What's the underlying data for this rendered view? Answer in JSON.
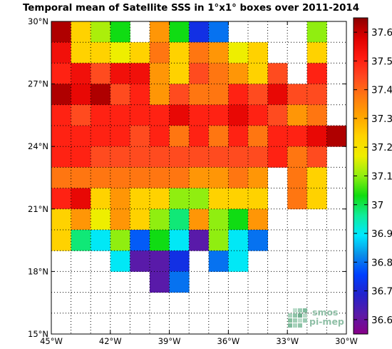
{
  "chart_data": {
    "type": "heatmap",
    "title": "Temporal mean of Satellite SSS in 1°x1° boxes over 2011-2014",
    "x_ticks": [
      "45°W",
      "42°W",
      "39°W",
      "36°W",
      "33°W",
      "30°W"
    ],
    "y_ticks": [
      "15°N",
      "18°N",
      "21°N",
      "24°N",
      "27°N",
      "30°N"
    ],
    "x_range": [
      -45,
      -30
    ],
    "y_range": [
      15,
      30
    ],
    "grid": true,
    "colorbar": {
      "ticks": [
        "36.6",
        "36.7",
        "36.8",
        "36.9",
        "37",
        "37.1",
        "37.2",
        "37.3",
        "37.4",
        "37.5",
        "37.6"
      ],
      "range": [
        36.55,
        37.65
      ],
      "colors": [
        "#880088",
        "#5a1aa8",
        "#2222cc",
        "#0040ff",
        "#0a8ee8",
        "#00e8ff",
        "#10ec9a",
        "#10dc10",
        "#90ee10",
        "#eeee00",
        "#ffd400",
        "#ffa500",
        "#ff7a10",
        "#ff4820",
        "#ff1a10",
        "#dd0000",
        "#8b0000"
      ]
    },
    "logo": "smos pi-mep",
    "cells": [
      {
        "x": -45,
        "y": 29,
        "v": 37.62
      },
      {
        "x": -44,
        "y": 29,
        "v": 37.24
      },
      {
        "x": -43,
        "y": 29,
        "v": 37.12
      },
      {
        "x": -42,
        "y": 29,
        "v": 37.03
      },
      {
        "x": -40,
        "y": 29,
        "v": 37.33
      },
      {
        "x": -39,
        "y": 29,
        "v": 37.03
      },
      {
        "x": -38,
        "y": 29,
        "v": 36.72
      },
      {
        "x": -37,
        "y": 29,
        "v": 36.8
      },
      {
        "x": -32,
        "y": 29,
        "v": 37.1
      },
      {
        "x": -45,
        "y": 28,
        "v": 37.54
      },
      {
        "x": -44,
        "y": 28,
        "v": 37.24
      },
      {
        "x": -43,
        "y": 28,
        "v": 37.24
      },
      {
        "x": -42,
        "y": 28,
        "v": 37.17
      },
      {
        "x": -41,
        "y": 28,
        "v": 37.24
      },
      {
        "x": -40,
        "y": 28,
        "v": 37.38
      },
      {
        "x": -39,
        "y": 28,
        "v": 37.24
      },
      {
        "x": -38,
        "y": 28,
        "v": 37.38
      },
      {
        "x": -37,
        "y": 28,
        "v": 37.33
      },
      {
        "x": -36,
        "y": 28,
        "v": 37.17
      },
      {
        "x": -35,
        "y": 28,
        "v": 37.24
      },
      {
        "x": -32,
        "y": 28,
        "v": 37.24
      },
      {
        "x": -45,
        "y": 27,
        "v": 37.5
      },
      {
        "x": -44,
        "y": 27,
        "v": 37.54
      },
      {
        "x": -43,
        "y": 27,
        "v": 37.44
      },
      {
        "x": -42,
        "y": 27,
        "v": 37.54
      },
      {
        "x": -41,
        "y": 27,
        "v": 37.54
      },
      {
        "x": -40,
        "y": 27,
        "v": 37.33
      },
      {
        "x": -39,
        "y": 27,
        "v": 37.24
      },
      {
        "x": -38,
        "y": 27,
        "v": 37.44
      },
      {
        "x": -37,
        "y": 27,
        "v": 37.38
      },
      {
        "x": -36,
        "y": 27,
        "v": 37.33
      },
      {
        "x": -35,
        "y": 27,
        "v": 37.24
      },
      {
        "x": -34,
        "y": 27,
        "v": 37.44
      },
      {
        "x": -32,
        "y": 27,
        "v": 37.5
      },
      {
        "x": -45,
        "y": 26,
        "v": 37.62
      },
      {
        "x": -44,
        "y": 26,
        "v": 37.56
      },
      {
        "x": -43,
        "y": 26,
        "v": 37.62
      },
      {
        "x": -42,
        "y": 26,
        "v": 37.44
      },
      {
        "x": -41,
        "y": 26,
        "v": 37.5
      },
      {
        "x": -40,
        "y": 26,
        "v": 37.33
      },
      {
        "x": -39,
        "y": 26,
        "v": 37.44
      },
      {
        "x": -38,
        "y": 26,
        "v": 37.38
      },
      {
        "x": -37,
        "y": 26,
        "v": 37.38
      },
      {
        "x": -36,
        "y": 26,
        "v": 37.5
      },
      {
        "x": -35,
        "y": 26,
        "v": 37.44
      },
      {
        "x": -34,
        "y": 26,
        "v": 37.56
      },
      {
        "x": -33,
        "y": 26,
        "v": 37.44
      },
      {
        "x": -32,
        "y": 26,
        "v": 37.44
      },
      {
        "x": -45,
        "y": 25,
        "v": 37.5
      },
      {
        "x": -44,
        "y": 25,
        "v": 37.44
      },
      {
        "x": -43,
        "y": 25,
        "v": 37.5
      },
      {
        "x": -42,
        "y": 25,
        "v": 37.5
      },
      {
        "x": -41,
        "y": 25,
        "v": 37.5
      },
      {
        "x": -40,
        "y": 25,
        "v": 37.5
      },
      {
        "x": -39,
        "y": 25,
        "v": 37.56
      },
      {
        "x": -38,
        "y": 25,
        "v": 37.5
      },
      {
        "x": -37,
        "y": 25,
        "v": 37.5
      },
      {
        "x": -36,
        "y": 25,
        "v": 37.56
      },
      {
        "x": -35,
        "y": 25,
        "v": 37.5
      },
      {
        "x": -34,
        "y": 25,
        "v": 37.44
      },
      {
        "x": -33,
        "y": 25,
        "v": 37.33
      },
      {
        "x": -32,
        "y": 25,
        "v": 37.38
      },
      {
        "x": -45,
        "y": 24,
        "v": 37.5
      },
      {
        "x": -44,
        "y": 24,
        "v": 37.5
      },
      {
        "x": -43,
        "y": 24,
        "v": 37.5
      },
      {
        "x": -42,
        "y": 24,
        "v": 37.5
      },
      {
        "x": -41,
        "y": 24,
        "v": 37.44
      },
      {
        "x": -40,
        "y": 24,
        "v": 37.5
      },
      {
        "x": -39,
        "y": 24,
        "v": 37.38
      },
      {
        "x": -38,
        "y": 24,
        "v": 37.5
      },
      {
        "x": -37,
        "y": 24,
        "v": 37.38
      },
      {
        "x": -36,
        "y": 24,
        "v": 37.5
      },
      {
        "x": -35,
        "y": 24,
        "v": 37.38
      },
      {
        "x": -34,
        "y": 24,
        "v": 37.5
      },
      {
        "x": -33,
        "y": 24,
        "v": 37.5
      },
      {
        "x": -32,
        "y": 24,
        "v": 37.56
      },
      {
        "x": -31,
        "y": 24,
        "v": 37.62
      },
      {
        "x": -45,
        "y": 23,
        "v": 37.5
      },
      {
        "x": -44,
        "y": 23,
        "v": 37.5
      },
      {
        "x": -43,
        "y": 23,
        "v": 37.44
      },
      {
        "x": -42,
        "y": 23,
        "v": 37.44
      },
      {
        "x": -41,
        "y": 23,
        "v": 37.44
      },
      {
        "x": -40,
        "y": 23,
        "v": 37.44
      },
      {
        "x": -39,
        "y": 23,
        "v": 37.44
      },
      {
        "x": -38,
        "y": 23,
        "v": 37.44
      },
      {
        "x": -37,
        "y": 23,
        "v": 37.44
      },
      {
        "x": -36,
        "y": 23,
        "v": 37.44
      },
      {
        "x": -35,
        "y": 23,
        "v": 37.44
      },
      {
        "x": -34,
        "y": 23,
        "v": 37.5
      },
      {
        "x": -33,
        "y": 23,
        "v": 37.38
      },
      {
        "x": -32,
        "y": 23,
        "v": 37.44
      },
      {
        "x": -45,
        "y": 22,
        "v": 37.38
      },
      {
        "x": -44,
        "y": 22,
        "v": 37.38
      },
      {
        "x": -43,
        "y": 22,
        "v": 37.38
      },
      {
        "x": -42,
        "y": 22,
        "v": 37.38
      },
      {
        "x": -41,
        "y": 22,
        "v": 37.38
      },
      {
        "x": -40,
        "y": 22,
        "v": 37.38
      },
      {
        "x": -39,
        "y": 22,
        "v": 37.38
      },
      {
        "x": -38,
        "y": 22,
        "v": 37.33
      },
      {
        "x": -37,
        "y": 22,
        "v": 37.33
      },
      {
        "x": -36,
        "y": 22,
        "v": 37.38
      },
      {
        "x": -35,
        "y": 22,
        "v": 37.33
      },
      {
        "x": -33,
        "y": 22,
        "v": 37.38
      },
      {
        "x": -32,
        "y": 22,
        "v": 37.24
      },
      {
        "x": -45,
        "y": 21,
        "v": 37.5
      },
      {
        "x": -44,
        "y": 21,
        "v": 37.56
      },
      {
        "x": -43,
        "y": 21,
        "v": 37.24
      },
      {
        "x": -42,
        "y": 21,
        "v": 37.33
      },
      {
        "x": -41,
        "y": 21,
        "v": 37.24
      },
      {
        "x": -40,
        "y": 21,
        "v": 37.24
      },
      {
        "x": -39,
        "y": 21,
        "v": 37.1
      },
      {
        "x": -38,
        "y": 21,
        "v": 37.1
      },
      {
        "x": -37,
        "y": 21,
        "v": 37.24
      },
      {
        "x": -36,
        "y": 21,
        "v": 37.24
      },
      {
        "x": -35,
        "y": 21,
        "v": 37.24
      },
      {
        "x": -33,
        "y": 21,
        "v": 37.38
      },
      {
        "x": -32,
        "y": 21,
        "v": 37.24
      },
      {
        "x": -45,
        "y": 20,
        "v": 37.24
      },
      {
        "x": -44,
        "y": 20,
        "v": 37.33
      },
      {
        "x": -43,
        "y": 20,
        "v": 37.17
      },
      {
        "x": -42,
        "y": 20,
        "v": 37.33
      },
      {
        "x": -41,
        "y": 20,
        "v": 37.24
      },
      {
        "x": -40,
        "y": 20,
        "v": 37.1
      },
      {
        "x": -39,
        "y": 20,
        "v": 36.98
      },
      {
        "x": -38,
        "y": 20,
        "v": 37.33
      },
      {
        "x": -37,
        "y": 20,
        "v": 37.1
      },
      {
        "x": -36,
        "y": 20,
        "v": 37.03
      },
      {
        "x": -35,
        "y": 20,
        "v": 37.33
      },
      {
        "x": -45,
        "y": 19,
        "v": 37.24
      },
      {
        "x": -44,
        "y": 19,
        "v": 36.98
      },
      {
        "x": -43,
        "y": 19,
        "v": 36.9
      },
      {
        "x": -42,
        "y": 19,
        "v": 37.1
      },
      {
        "x": -41,
        "y": 19,
        "v": 36.78
      },
      {
        "x": -40,
        "y": 19,
        "v": 37.03
      },
      {
        "x": -39,
        "y": 19,
        "v": 36.9
      },
      {
        "x": -38,
        "y": 19,
        "v": 36.62
      },
      {
        "x": -37,
        "y": 19,
        "v": 37.1
      },
      {
        "x": -36,
        "y": 19,
        "v": 36.9
      },
      {
        "x": -35,
        "y": 19,
        "v": 36.8
      },
      {
        "x": -42,
        "y": 18,
        "v": 36.9
      },
      {
        "x": -41,
        "y": 18,
        "v": 36.62
      },
      {
        "x": -40,
        "y": 18,
        "v": 36.62
      },
      {
        "x": -39,
        "y": 18,
        "v": 36.72
      },
      {
        "x": -37,
        "y": 18,
        "v": 36.8
      },
      {
        "x": -36,
        "y": 18,
        "v": 36.9
      },
      {
        "x": -40,
        "y": 17,
        "v": 36.62
      },
      {
        "x": -39,
        "y": 17,
        "v": 36.8
      }
    ]
  }
}
